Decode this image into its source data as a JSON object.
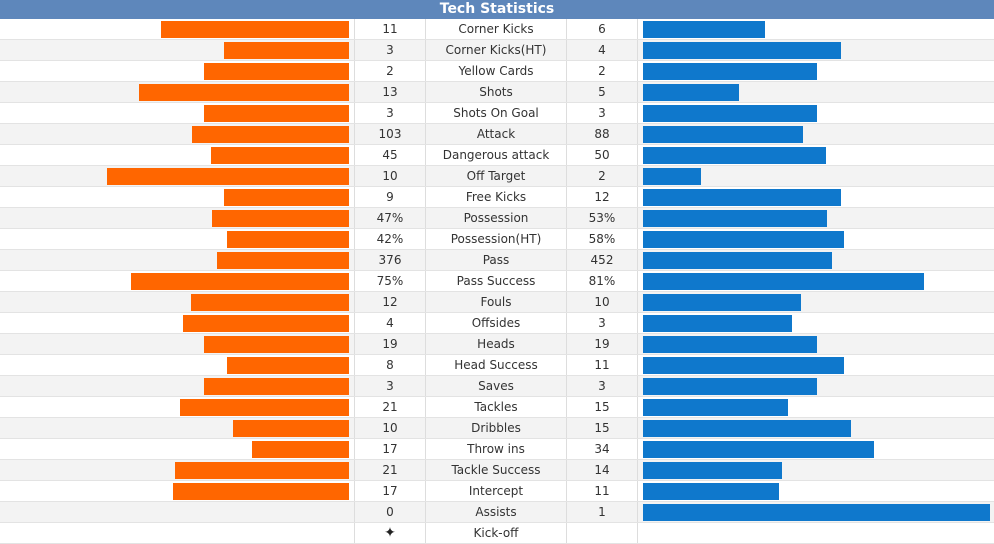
{
  "header": {
    "title": "Tech Statistics"
  },
  "colors": {
    "home": "#ff6600",
    "away": "#0f78cc",
    "header": "#5e87bb"
  },
  "stats": [
    {
      "name": "Corner Kicks",
      "home": "11",
      "away": "6",
      "home_share": 0.647,
      "away_share": 0.353
    },
    {
      "name": "Corner Kicks(HT)",
      "home": "3",
      "away": "4",
      "home_share": 0.429,
      "away_share": 0.571
    },
    {
      "name": "Yellow Cards",
      "home": "2",
      "away": "2",
      "home_share": 0.5,
      "away_share": 0.5
    },
    {
      "name": "Shots",
      "home": "13",
      "away": "5",
      "home_share": 0.722,
      "away_share": 0.278
    },
    {
      "name": "Shots On Goal",
      "home": "3",
      "away": "3",
      "home_share": 0.5,
      "away_share": 0.5
    },
    {
      "name": "Attack",
      "home": "103",
      "away": "88",
      "home_share": 0.539,
      "away_share": 0.461
    },
    {
      "name": "Dangerous attack",
      "home": "45",
      "away": "50",
      "home_share": 0.474,
      "away_share": 0.526
    },
    {
      "name": "Off Target",
      "home": "10",
      "away": "2",
      "home_share": 0.833,
      "away_share": 0.167
    },
    {
      "name": "Free Kicks",
      "home": "9",
      "away": "12",
      "home_share": 0.429,
      "away_share": 0.571
    },
    {
      "name": "Possession",
      "home": "47%",
      "away": "53%",
      "home_share": 0.47,
      "away_share": 0.53
    },
    {
      "name": "Possession(HT)",
      "home": "42%",
      "away": "58%",
      "home_share": 0.42,
      "away_share": 0.58
    },
    {
      "name": "Pass",
      "home": "376",
      "away": "452",
      "home_share": 0.454,
      "away_share": 0.546
    },
    {
      "name": "Pass Success",
      "home": "75%",
      "away": "81%",
      "home_share": 0.75,
      "away_share": 0.81
    },
    {
      "name": "Fouls",
      "home": "12",
      "away": "10",
      "home_share": 0.545,
      "away_share": 0.455
    },
    {
      "name": "Offsides",
      "home": "4",
      "away": "3",
      "home_share": 0.571,
      "away_share": 0.429
    },
    {
      "name": "Heads",
      "home": "19",
      "away": "19",
      "home_share": 0.5,
      "away_share": 0.5
    },
    {
      "name": "Head Success",
      "home": "8",
      "away": "11",
      "home_share": 0.421,
      "away_share": 0.579
    },
    {
      "name": "Saves",
      "home": "3",
      "away": "3",
      "home_share": 0.5,
      "away_share": 0.5
    },
    {
      "name": "Tackles",
      "home": "21",
      "away": "15",
      "home_share": 0.583,
      "away_share": 0.417
    },
    {
      "name": "Dribbles",
      "home": "10",
      "away": "15",
      "home_share": 0.4,
      "away_share": 0.6
    },
    {
      "name": "Throw ins",
      "home": "17",
      "away": "34",
      "home_share": 0.333,
      "away_share": 0.667
    },
    {
      "name": "Tackle Success",
      "home": "21",
      "away": "14",
      "home_share": 0.6,
      "away_share": 0.4
    },
    {
      "name": "Intercept",
      "home": "17",
      "away": "11",
      "home_share": 0.607,
      "away_share": 0.393
    },
    {
      "name": "Assists",
      "home": "0",
      "away": "1",
      "home_share": 0.0,
      "away_share": 1.0
    },
    {
      "name": "Kick-off",
      "home": "",
      "away": "",
      "home_icon": "kickoff-ball-icon",
      "home_share": 0,
      "away_share": 0
    }
  ]
}
